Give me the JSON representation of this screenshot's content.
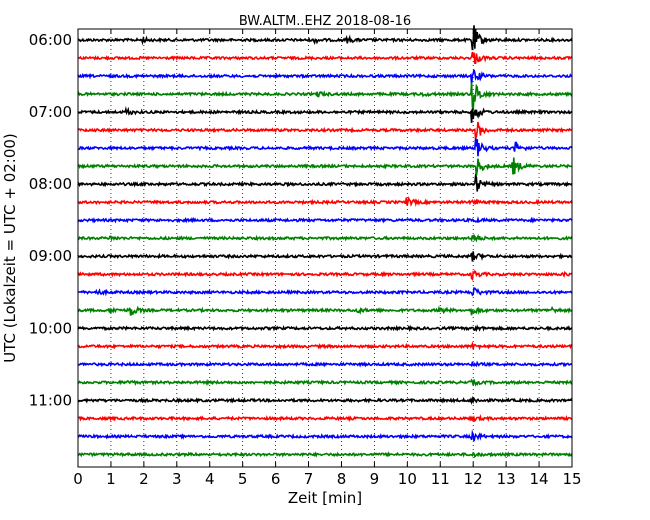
{
  "chart_data": {
    "type": "line",
    "title": "BW.ALTM..EHZ 2018-08-16",
    "xlabel": "Zeit  [min]",
    "ylabel": "UTC (Lokalzeit = UTC + 02:00)",
    "xlim": [
      0,
      15
    ],
    "x_ticks": [
      "0",
      "1",
      "2",
      "3",
      "4",
      "5",
      "6",
      "7",
      "8",
      "9",
      "10",
      "11",
      "12",
      "13",
      "14",
      "15"
    ],
    "y_ticks": [
      "06:00",
      "07:00",
      "08:00",
      "09:00",
      "10:00",
      "11:00"
    ],
    "grid": "vertical dotted",
    "trace_interval_min": 15,
    "trace_colors": [
      "#000000",
      "#ff0000",
      "#0000ff",
      "#008000"
    ],
    "series": [
      {
        "start": "06:00",
        "events": [
          {
            "x": 2.0,
            "amp": 0.35
          },
          {
            "x": 7.2,
            "amp": 0.5
          },
          {
            "x": 8.2,
            "amp": 0.55
          },
          {
            "x": 12.0,
            "amp": 4.0
          }
        ]
      },
      {
        "start": "06:15",
        "events": [
          {
            "x": 12.0,
            "amp": 2.0
          }
        ]
      },
      {
        "start": "06:30",
        "events": [
          {
            "x": 12.0,
            "amp": 2.0
          }
        ]
      },
      {
        "start": "06:45",
        "events": [
          {
            "x": 7.3,
            "amp": 0.5
          },
          {
            "x": 10.5,
            "amp": 0.3
          },
          {
            "x": 12.0,
            "amp": 4.0
          }
        ]
      },
      {
        "start": "07:00",
        "events": [
          {
            "x": 1.5,
            "amp": 0.6
          },
          {
            "x": 12.0,
            "amp": 2.5
          }
        ]
      },
      {
        "start": "07:15",
        "events": [
          {
            "x": 12.1,
            "amp": 2.5
          }
        ]
      },
      {
        "start": "07:30",
        "events": [
          {
            "x": 12.1,
            "amp": 2.5
          },
          {
            "x": 13.3,
            "amp": 1.2
          }
        ]
      },
      {
        "start": "07:45",
        "events": [
          {
            "x": 12.1,
            "amp": 2.5
          },
          {
            "x": 13.2,
            "amp": 2.5
          }
        ]
      },
      {
        "start": "08:00",
        "events": [
          {
            "x": 12.1,
            "amp": 2.0
          }
        ]
      },
      {
        "start": "08:15",
        "events": [
          {
            "x": 10.0,
            "amp": 0.9
          },
          {
            "x": 12.0,
            "amp": 0.4
          }
        ]
      },
      {
        "start": "08:30",
        "events": [
          {
            "x": 12.0,
            "amp": 0.4
          }
        ]
      },
      {
        "start": "08:45",
        "events": [
          {
            "x": 1.0,
            "amp": 0.4
          },
          {
            "x": 12.0,
            "amp": 1.0
          }
        ]
      },
      {
        "start": "09:00",
        "events": [
          {
            "x": 12.0,
            "amp": 1.0
          }
        ]
      },
      {
        "start": "09:15",
        "events": [
          {
            "x": 12.0,
            "amp": 1.0
          },
          {
            "x": 14.8,
            "amp": 0.3
          }
        ]
      },
      {
        "start": "09:30",
        "events": [
          {
            "x": 0.6,
            "amp": 0.4
          },
          {
            "x": 12.0,
            "amp": 1.2
          }
        ]
      },
      {
        "start": "09:45",
        "events": [
          {
            "x": 1.0,
            "amp": 0.6
          },
          {
            "x": 1.6,
            "amp": 1.4
          },
          {
            "x": 8.5,
            "amp": 0.5
          },
          {
            "x": 11.0,
            "amp": 0.6
          },
          {
            "x": 12.0,
            "amp": 1.0
          },
          {
            "x": 14.4,
            "amp": 0.5
          }
        ]
      },
      {
        "start": "10:00",
        "events": [
          {
            "x": 12.0,
            "amp": 0.6
          }
        ]
      },
      {
        "start": "10:15",
        "events": [
          {
            "x": 12.0,
            "amp": 0.5
          }
        ]
      },
      {
        "start": "10:30",
        "events": [
          {
            "x": 12.0,
            "amp": 0.4
          }
        ]
      },
      {
        "start": "10:45",
        "events": [
          {
            "x": 1.5,
            "amp": 0.3
          },
          {
            "x": 12.0,
            "amp": 0.5
          }
        ]
      },
      {
        "start": "11:00",
        "events": [
          {
            "x": 12.0,
            "amp": 0.5
          }
        ]
      },
      {
        "start": "11:15",
        "events": [
          {
            "x": 12.0,
            "amp": 0.5
          }
        ]
      },
      {
        "start": "11:30",
        "events": [
          {
            "x": 12.0,
            "amp": 1.0
          }
        ]
      },
      {
        "start": "11:45",
        "events": [
          {
            "x": 12.0,
            "amp": 0.5
          }
        ]
      }
    ]
  }
}
